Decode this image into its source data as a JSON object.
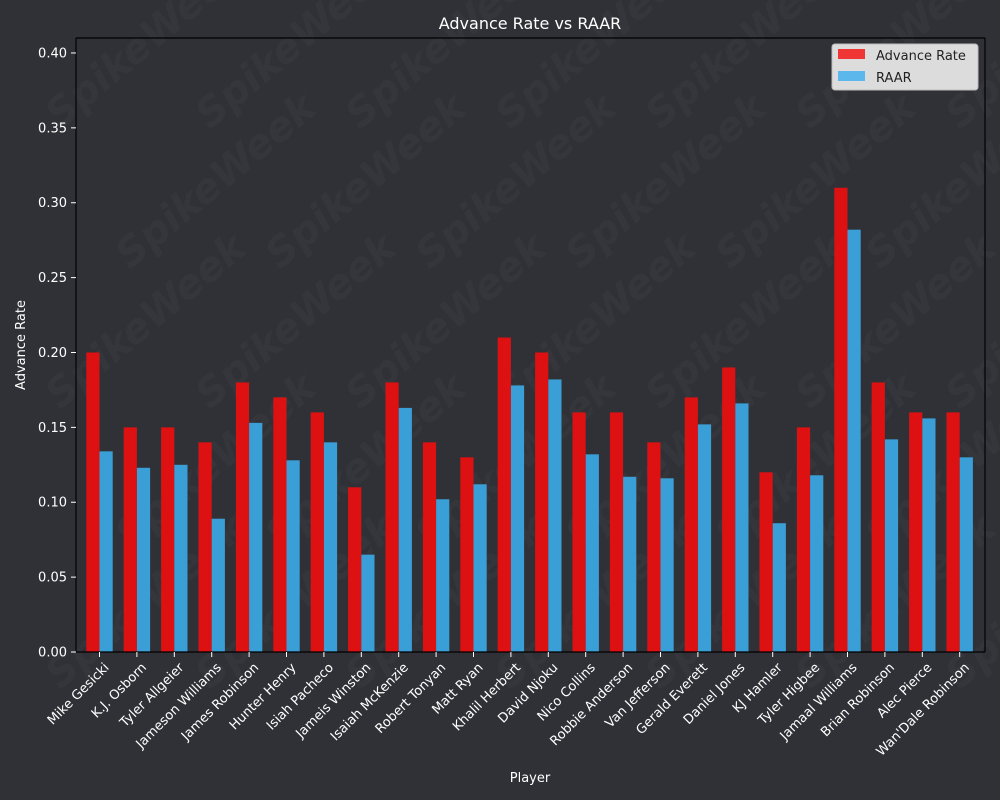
{
  "chart_data": {
    "type": "bar",
    "title": "Advance Rate vs RAAR",
    "xlabel": "Player",
    "ylabel": "Advance Rate",
    "ylim": [
      0,
      0.41
    ],
    "yticks": [
      "0.00",
      "0.05",
      "0.10",
      "0.15",
      "0.20",
      "0.25",
      "0.30",
      "0.35",
      "0.40"
    ],
    "grid": false,
    "legend_position": "top-right",
    "watermark": "SpikeWeek",
    "categories": [
      "Mike Gesicki",
      "K.J. Osborn",
      "Tyler Allgeier",
      "Jameson Williams",
      "James Robinson",
      "Hunter Henry",
      "Isiah Pacheco",
      "Jameis Winston",
      "Isaiah McKenzie",
      "Robert Tonyan",
      "Matt Ryan",
      "Khalil Herbert",
      "David Njoku",
      "Nico Collins",
      "Robbie Anderson",
      "Van Jefferson",
      "Gerald Everett",
      "Daniel Jones",
      "KJ Hamler",
      "Tyler Higbee",
      "Jamaal Williams",
      "Brian Robinson",
      "Alec Pierce",
      "Wan'Dale Robinson"
    ],
    "series": [
      {
        "name": "Advance Rate",
        "color": "#dd1111",
        "legend_color": "#f03535",
        "values": [
          0.2,
          0.15,
          0.15,
          0.14,
          0.18,
          0.17,
          0.16,
          0.11,
          0.18,
          0.14,
          0.13,
          0.21,
          0.2,
          0.16,
          0.16,
          0.14,
          0.17,
          0.19,
          0.12,
          0.15,
          0.31,
          0.18,
          0.16,
          0.16
        ]
      },
      {
        "name": "RAAR",
        "color": "#3a9fd6",
        "legend_color": "#5cb8ec",
        "values": [
          0.134,
          0.123,
          0.125,
          0.089,
          0.153,
          0.128,
          0.14,
          0.065,
          0.163,
          0.102,
          0.112,
          0.178,
          0.182,
          0.132,
          0.117,
          0.116,
          0.152,
          0.166,
          0.086,
          0.118,
          0.282,
          0.142,
          0.156,
          0.13
        ]
      }
    ]
  }
}
